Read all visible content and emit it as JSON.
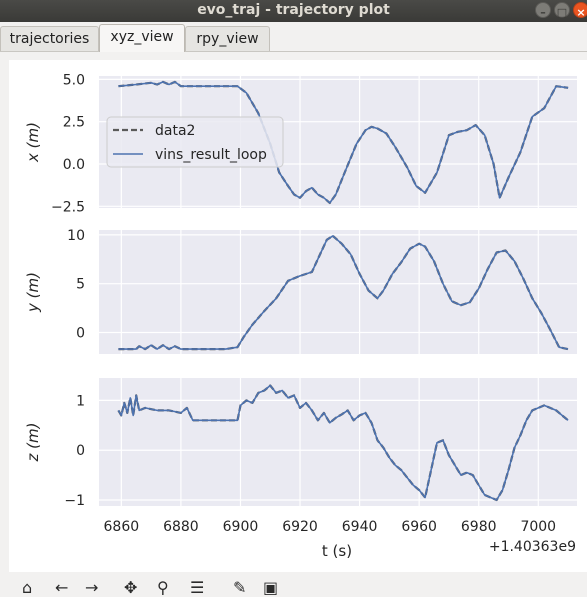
{
  "window": {
    "title": "evo_traj - trajectory plot"
  },
  "tabs": [
    {
      "label": "trajectories",
      "active": false
    },
    {
      "label": "xyz_view",
      "active": true
    },
    {
      "label": "rpy_view",
      "active": false
    }
  ],
  "chart_data": [
    {
      "type": "line",
      "ylabel": "x (m)",
      "ylim": [
        -2.6,
        5.2
      ],
      "yticks": [
        "5.0",
        "2.5",
        "0.0",
        "−2.5"
      ],
      "grid": true,
      "legend": {
        "placement": "upper-left",
        "entries": [
          "data2",
          "vins_result_loop"
        ]
      },
      "series": [
        {
          "name": "data2",
          "style": "dashed",
          "color": "#5a5a5a",
          "x": [
            6859,
            6865,
            6870,
            6872,
            6874,
            6876,
            6878,
            6880,
            6885,
            6890,
            6895,
            6899,
            6902,
            6906,
            6910,
            6913,
            6916,
            6918,
            6920,
            6922,
            6924,
            6926,
            6928,
            6930,
            6932,
            6935,
            6939,
            6942,
            6944,
            6946,
            6949,
            6952,
            6956,
            6959,
            6962,
            6966,
            6970,
            6973,
            6976,
            6979,
            6982,
            6985,
            6987,
            6990,
            6994,
            6998,
            7002,
            7006,
            7010
          ],
          "y": [
            4.6,
            4.7,
            4.8,
            4.7,
            4.85,
            4.7,
            4.85,
            4.6,
            4.6,
            4.6,
            4.6,
            4.6,
            4.2,
            3.0,
            1.2,
            -0.5,
            -1.3,
            -1.8,
            -2.0,
            -1.6,
            -1.4,
            -1.8,
            -2.0,
            -2.3,
            -1.8,
            -0.5,
            1.2,
            2.0,
            2.2,
            2.1,
            1.8,
            1.0,
            -0.2,
            -1.3,
            -1.7,
            -0.5,
            1.7,
            1.9,
            2.0,
            2.3,
            1.7,
            0.0,
            -2.0,
            -0.8,
            0.7,
            2.8,
            3.3,
            4.6,
            4.5
          ]
        },
        {
          "name": "vins_result_loop",
          "style": "solid",
          "color": "#4c72b0",
          "x": [
            6859,
            6865,
            6870,
            6872,
            6874,
            6876,
            6878,
            6880,
            6885,
            6890,
            6895,
            6899,
            6902,
            6906,
            6910,
            6913,
            6916,
            6918,
            6920,
            6922,
            6924,
            6926,
            6928,
            6930,
            6932,
            6935,
            6939,
            6942,
            6944,
            6946,
            6949,
            6952,
            6956,
            6959,
            6962,
            6966,
            6970,
            6973,
            6976,
            6979,
            6982,
            6985,
            6987,
            6990,
            6994,
            6998,
            7002,
            7006,
            7010
          ],
          "y": [
            4.6,
            4.7,
            4.8,
            4.7,
            4.85,
            4.7,
            4.85,
            4.6,
            4.6,
            4.6,
            4.6,
            4.6,
            4.2,
            3.0,
            1.2,
            -0.5,
            -1.3,
            -1.8,
            -2.0,
            -1.6,
            -1.4,
            -1.8,
            -2.0,
            -2.3,
            -1.8,
            -0.5,
            1.2,
            2.0,
            2.2,
            2.1,
            1.8,
            1.0,
            -0.2,
            -1.3,
            -1.7,
            -0.5,
            1.7,
            1.9,
            2.0,
            2.3,
            1.7,
            0.0,
            -2.0,
            -0.8,
            0.7,
            2.8,
            3.3,
            4.6,
            4.5
          ]
        }
      ]
    },
    {
      "type": "line",
      "ylabel": "y (m)",
      "ylim": [
        -2.2,
        10.5
      ],
      "yticks": [
        "10",
        "5",
        "0"
      ],
      "grid": true,
      "series": [
        {
          "name": "data2",
          "style": "dashed",
          "color": "#5a5a5a",
          "x": [
            6859,
            6865,
            6866,
            6868,
            6870,
            6872,
            6874,
            6876,
            6878,
            6880,
            6885,
            6890,
            6895,
            6899,
            6901,
            6904,
            6908,
            6912,
            6916,
            6920,
            6924,
            6927,
            6929,
            6931,
            6934,
            6937,
            6940,
            6943,
            6946,
            6948,
            6951,
            6954,
            6957,
            6960,
            6962,
            6965,
            6968,
            6971,
            6974,
            6977,
            6980,
            6983,
            6986,
            6989,
            6992,
            6995,
            6998,
            7001,
            7004,
            7007,
            7010
          ],
          "y": [
            -1.7,
            -1.7,
            -1.4,
            -1.7,
            -1.3,
            -1.7,
            -1.3,
            -1.7,
            -1.4,
            -1.7,
            -1.7,
            -1.7,
            -1.7,
            -1.5,
            -0.5,
            0.8,
            2.2,
            3.5,
            5.3,
            5.8,
            6.2,
            8.2,
            9.5,
            9.9,
            9.1,
            8.0,
            6.0,
            4.3,
            3.5,
            4.3,
            6.0,
            7.2,
            8.6,
            9.1,
            8.8,
            7.3,
            5.0,
            3.2,
            2.8,
            3.1,
            4.5,
            6.5,
            8.2,
            8.4,
            7.3,
            5.5,
            3.5,
            2.0,
            0.3,
            -1.5,
            -1.7
          ]
        },
        {
          "name": "vins_result_loop",
          "style": "solid",
          "color": "#4c72b0",
          "x": [
            6859,
            6865,
            6866,
            6868,
            6870,
            6872,
            6874,
            6876,
            6878,
            6880,
            6885,
            6890,
            6895,
            6899,
            6901,
            6904,
            6908,
            6912,
            6916,
            6920,
            6924,
            6927,
            6929,
            6931,
            6934,
            6937,
            6940,
            6943,
            6946,
            6948,
            6951,
            6954,
            6957,
            6960,
            6962,
            6965,
            6968,
            6971,
            6974,
            6977,
            6980,
            6983,
            6986,
            6989,
            6992,
            6995,
            6998,
            7001,
            7004,
            7007,
            7010
          ],
          "y": [
            -1.7,
            -1.7,
            -1.4,
            -1.7,
            -1.3,
            -1.7,
            -1.3,
            -1.7,
            -1.4,
            -1.7,
            -1.7,
            -1.7,
            -1.7,
            -1.5,
            -0.5,
            0.8,
            2.2,
            3.5,
            5.3,
            5.8,
            6.2,
            8.2,
            9.5,
            9.9,
            9.1,
            8.0,
            6.0,
            4.3,
            3.5,
            4.3,
            6.0,
            7.2,
            8.6,
            9.1,
            8.8,
            7.3,
            5.0,
            3.2,
            2.8,
            3.1,
            4.5,
            6.5,
            8.2,
            8.4,
            7.3,
            5.5,
            3.5,
            2.0,
            0.3,
            -1.5,
            -1.7
          ]
        }
      ]
    },
    {
      "type": "line",
      "ylabel": "z (m)",
      "xlabel": "t (s)",
      "x_offset_label": "+1.40363e9",
      "ylim": [
        -1.12,
        1.45
      ],
      "yticks": [
        "1",
        "0",
        "−1"
      ],
      "xticks": [
        "6860",
        "6880",
        "6900",
        "6920",
        "6940",
        "6960",
        "6980",
        "7000"
      ],
      "xlim": [
        6852.5,
        7013
      ],
      "grid": true,
      "series": [
        {
          "name": "data2",
          "style": "dashed",
          "color": "#5a5a5a",
          "x": [
            6859,
            6860,
            6861,
            6862,
            6863,
            6864,
            6865,
            6866,
            6868,
            6872,
            6876,
            6880,
            6882,
            6884,
            6890,
            6895,
            6899,
            6900,
            6902,
            6904,
            6906,
            6908,
            6910,
            6912,
            6914,
            6916,
            6918,
            6920,
            6922,
            6924,
            6926,
            6928,
            6930,
            6932,
            6934,
            6936,
            6938,
            6940,
            6942,
            6944,
            6946,
            6948,
            6950,
            6952,
            6954,
            6956,
            6958,
            6960,
            6962,
            6964,
            6966,
            6968,
            6970,
            6972,
            6974,
            6976,
            6978,
            6980,
            6982,
            6984,
            6986,
            6988,
            6990,
            6992,
            6994,
            6996,
            6998,
            7000,
            7002,
            7004,
            7006,
            7008,
            7010
          ],
          "y": [
            0.8,
            0.7,
            0.95,
            0.75,
            1.05,
            0.7,
            1.1,
            0.8,
            0.85,
            0.8,
            0.8,
            0.75,
            0.85,
            0.6,
            0.6,
            0.6,
            0.6,
            0.9,
            1.0,
            0.95,
            1.15,
            1.2,
            1.3,
            1.15,
            1.2,
            1.05,
            1.1,
            0.85,
            0.95,
            0.8,
            0.6,
            0.75,
            0.55,
            0.65,
            0.72,
            0.8,
            0.6,
            0.7,
            0.75,
            0.55,
            0.2,
            0.05,
            -0.15,
            -0.3,
            -0.4,
            -0.55,
            -0.7,
            -0.8,
            -0.95,
            -0.4,
            0.15,
            0.2,
            -0.1,
            -0.3,
            -0.5,
            -0.45,
            -0.5,
            -0.7,
            -0.9,
            -0.95,
            -1.0,
            -0.8,
            -0.4,
            0.05,
            0.3,
            0.6,
            0.8,
            0.85,
            0.9,
            0.85,
            0.8,
            0.7,
            0.6
          ]
        },
        {
          "name": "vins_result_loop",
          "style": "solid",
          "color": "#4c72b0",
          "x": [
            6859,
            6860,
            6861,
            6862,
            6863,
            6864,
            6865,
            6866,
            6868,
            6872,
            6876,
            6880,
            6882,
            6884,
            6890,
            6895,
            6899,
            6900,
            6902,
            6904,
            6906,
            6908,
            6910,
            6912,
            6914,
            6916,
            6918,
            6920,
            6922,
            6924,
            6926,
            6928,
            6930,
            6932,
            6934,
            6936,
            6938,
            6940,
            6942,
            6944,
            6946,
            6948,
            6950,
            6952,
            6954,
            6956,
            6958,
            6960,
            6962,
            6964,
            6966,
            6968,
            6970,
            6972,
            6974,
            6976,
            6978,
            6980,
            6982,
            6984,
            6986,
            6988,
            6990,
            6992,
            6994,
            6996,
            6998,
            7000,
            7002,
            7004,
            7006,
            7008,
            7010
          ],
          "y": [
            0.8,
            0.7,
            0.95,
            0.75,
            1.05,
            0.7,
            1.1,
            0.8,
            0.85,
            0.8,
            0.8,
            0.75,
            0.85,
            0.6,
            0.6,
            0.6,
            0.6,
            0.9,
            1.0,
            0.95,
            1.15,
            1.2,
            1.3,
            1.15,
            1.2,
            1.05,
            1.1,
            0.85,
            0.95,
            0.8,
            0.6,
            0.75,
            0.55,
            0.65,
            0.72,
            0.8,
            0.6,
            0.7,
            0.75,
            0.55,
            0.2,
            0.05,
            -0.15,
            -0.3,
            -0.4,
            -0.55,
            -0.7,
            -0.8,
            -0.95,
            -0.4,
            0.15,
            0.2,
            -0.1,
            -0.3,
            -0.5,
            -0.45,
            -0.5,
            -0.7,
            -0.9,
            -0.95,
            -1.0,
            -0.8,
            -0.4,
            0.05,
            0.3,
            0.6,
            0.8,
            0.85,
            0.9,
            0.85,
            0.8,
            0.7,
            0.6
          ]
        }
      ]
    }
  ],
  "colors": {
    "axes_bg": "#eaeaf2",
    "grid": "#ffffff",
    "line_primary": "#4c72b0",
    "line_reference": "#5a5a5a",
    "titlebar": "#3c3b37",
    "close_button": "#e95420"
  },
  "toolbar": {
    "icons": [
      "home-icon",
      "back-icon",
      "forward-icon",
      "pan-icon",
      "zoom-icon",
      "configure-icon",
      "edit-icon",
      "save-icon"
    ]
  }
}
